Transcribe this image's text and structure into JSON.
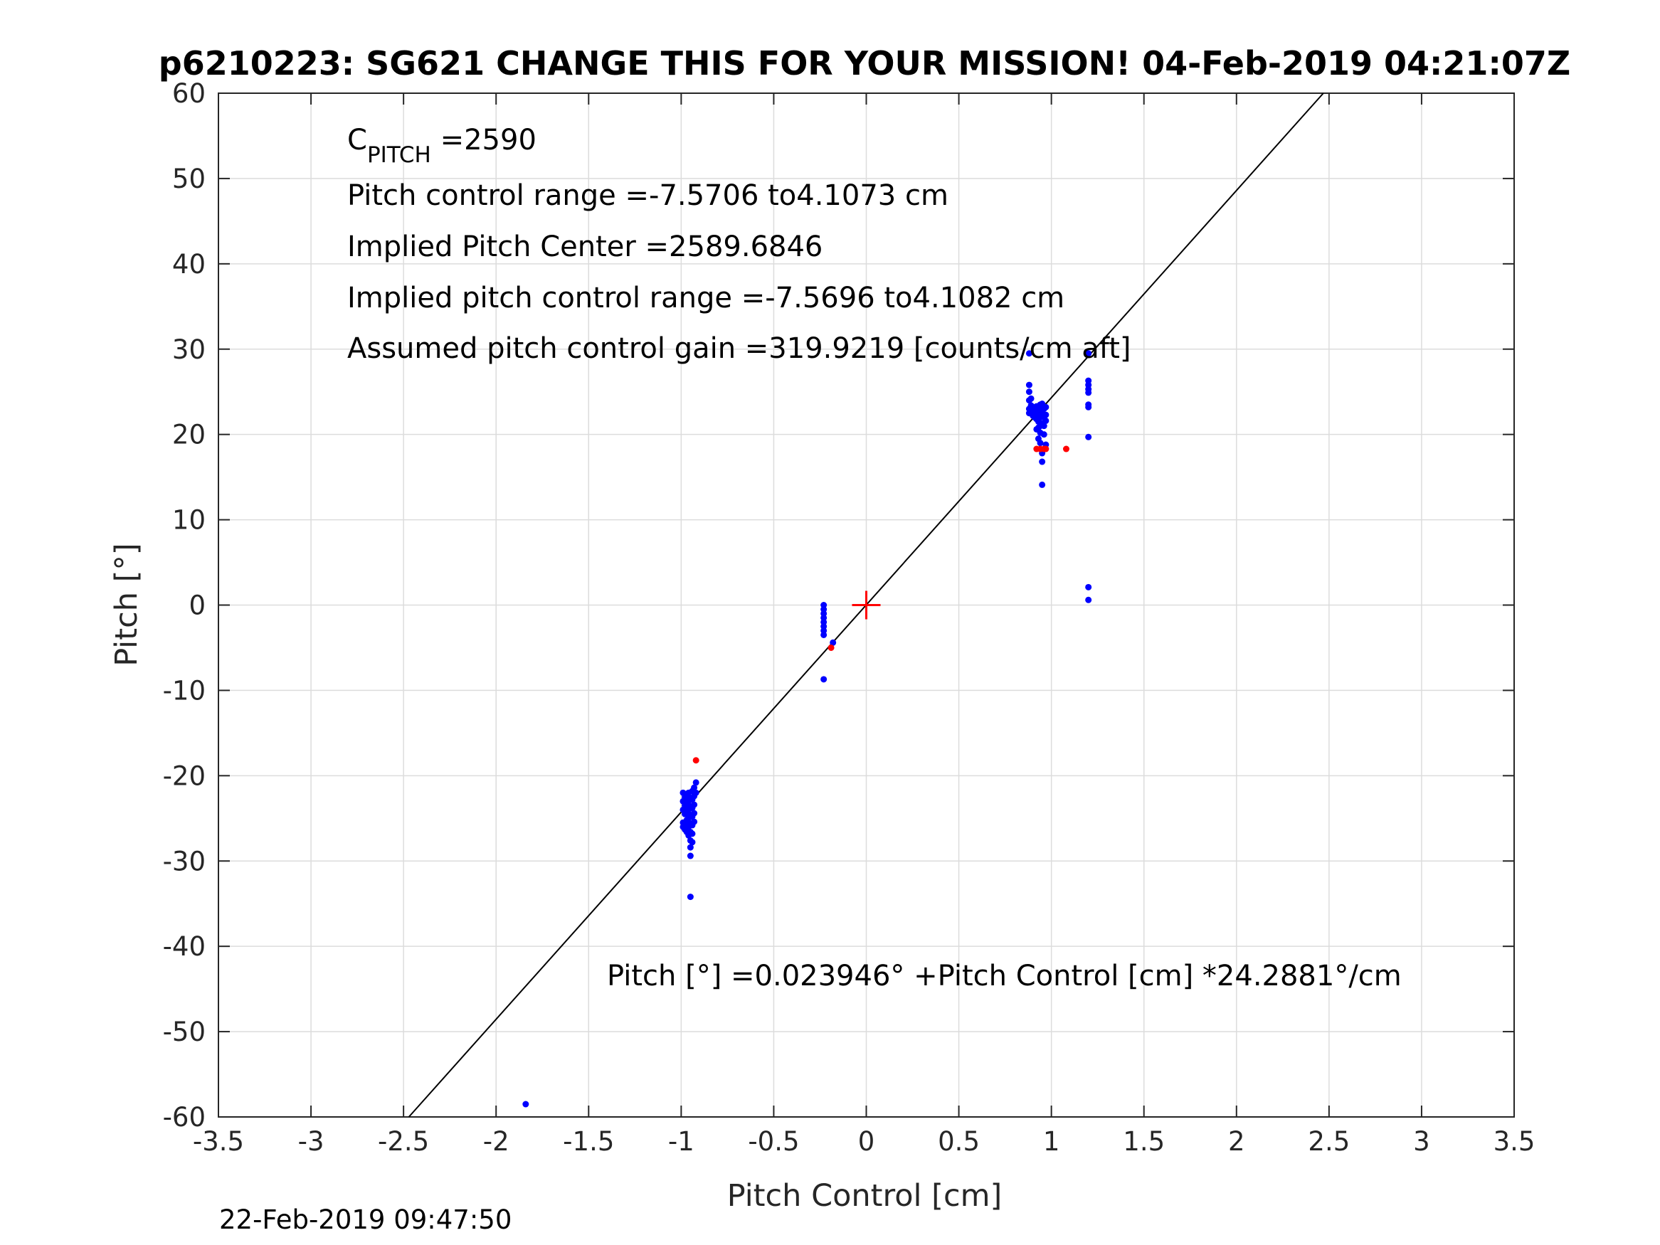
{
  "chart_data": {
    "type": "scatter",
    "title": "p6210223: SG621 CHANGE THIS FOR YOUR MISSION! 04-Feb-2019 04:21:07Z",
    "xlabel": "Pitch Control [cm]",
    "ylabel": "Pitch [°]",
    "xlim": [
      -3.5,
      3.5
    ],
    "ylim": [
      -60,
      60
    ],
    "xticks": [
      -3.5,
      -3,
      -2.5,
      -2,
      -1.5,
      -1,
      -0.5,
      0,
      0.5,
      1,
      1.5,
      2,
      2.5,
      3,
      3.5
    ],
    "yticks": [
      -60,
      -50,
      -40,
      -30,
      -20,
      -10,
      0,
      10,
      20,
      30,
      40,
      50,
      60
    ],
    "grid": true,
    "colors": {
      "primary": "#0000ff",
      "secondary": "#ff0000",
      "fit": "#000000",
      "center": "#ff0000",
      "grid": "#dcdcdc"
    },
    "annotations": {
      "c_pitch_main": "C",
      "c_pitch_sub": "PITCH",
      "c_pitch_value": " =2590",
      "range": "Pitch control range =-7.5706 to4.1073 cm",
      "implied_center": "Implied Pitch Center =2589.6846",
      "implied_range": "Implied pitch control range =-7.5696 to4.1082 cm",
      "gain": "Assumed pitch control gain =319.9219 [counts/cm aft]",
      "fit_equation": "Pitch [°] =0.023946° +Pitch Control [cm] *24.2881°/cm"
    },
    "fit_line": {
      "intercept": 0.023946,
      "slope": 24.2881
    },
    "center_marker": [
      0,
      0
    ],
    "series": [
      {
        "color": "#0000ff",
        "points": [
          [
            -0.99,
            -22.0
          ],
          [
            -0.99,
            -23.0
          ],
          [
            -0.99,
            -24.0
          ],
          [
            -0.99,
            -25.5
          ],
          [
            -0.99,
            -26.0
          ],
          [
            -0.98,
            -22.5
          ],
          [
            -0.98,
            -23.5
          ],
          [
            -0.98,
            -24.5
          ],
          [
            -0.98,
            -25.8
          ],
          [
            -0.98,
            -26.3
          ],
          [
            -0.97,
            -22.2
          ],
          [
            -0.97,
            -23.2
          ],
          [
            -0.97,
            -24.2
          ],
          [
            -0.97,
            -25.2
          ],
          [
            -0.97,
            -26.6
          ],
          [
            -0.96,
            -22.0
          ],
          [
            -0.96,
            -23.0
          ],
          [
            -0.96,
            -24.0
          ],
          [
            -0.96,
            -25.0
          ],
          [
            -0.96,
            -26.0
          ],
          [
            -0.96,
            -27.0
          ],
          [
            -0.95,
            -22.6
          ],
          [
            -0.95,
            -23.6
          ],
          [
            -0.95,
            -24.6
          ],
          [
            -0.95,
            -25.6
          ],
          [
            -0.95,
            -26.6
          ],
          [
            -0.95,
            -27.6
          ],
          [
            -0.95,
            -28.4
          ],
          [
            -0.95,
            -29.4
          ],
          [
            -0.95,
            -34.2
          ],
          [
            -0.94,
            -21.8
          ],
          [
            -0.94,
            -22.8
          ],
          [
            -0.94,
            -23.8
          ],
          [
            -0.94,
            -24.8
          ],
          [
            -0.94,
            -25.8
          ],
          [
            -0.94,
            -26.8
          ],
          [
            -0.94,
            -27.8
          ],
          [
            -0.93,
            -21.4
          ],
          [
            -0.93,
            -22.4
          ],
          [
            -0.93,
            -23.4
          ],
          [
            -0.93,
            -24.4
          ],
          [
            -0.93,
            -25.4
          ],
          [
            -0.92,
            -20.8
          ],
          [
            -0.92,
            -22.0
          ],
          [
            -0.23,
            0.0
          ],
          [
            -0.23,
            -0.5
          ],
          [
            -0.23,
            -1.0
          ],
          [
            -0.23,
            -1.5
          ],
          [
            -0.23,
            -2.0
          ],
          [
            -0.23,
            -2.5
          ],
          [
            -0.23,
            -3.0
          ],
          [
            -0.23,
            -3.5
          ],
          [
            -0.23,
            -8.7
          ],
          [
            -0.18,
            -4.4
          ],
          [
            0.88,
            25.8
          ],
          [
            0.88,
            25.0
          ],
          [
            0.88,
            24.0
          ],
          [
            0.88,
            23.0
          ],
          [
            0.88,
            22.5
          ],
          [
            0.88,
            29.5
          ],
          [
            0.89,
            22.8
          ],
          [
            0.89,
            23.4
          ],
          [
            0.89,
            24.2
          ],
          [
            0.9,
            22.2
          ],
          [
            0.9,
            22.8
          ],
          [
            0.9,
            23.2
          ],
          [
            0.91,
            22.0
          ],
          [
            0.91,
            22.6
          ],
          [
            0.91,
            23.0
          ],
          [
            0.92,
            21.8
          ],
          [
            0.92,
            22.4
          ],
          [
            0.92,
            23.3
          ],
          [
            0.92,
            20.6
          ],
          [
            0.93,
            21.5
          ],
          [
            0.93,
            22.2
          ],
          [
            0.93,
            23.0
          ],
          [
            0.93,
            20.8
          ],
          [
            0.93,
            19.5
          ],
          [
            0.94,
            21.0
          ],
          [
            0.94,
            22.0
          ],
          [
            0.94,
            23.5
          ],
          [
            0.94,
            20.2
          ],
          [
            0.94,
            19.0
          ],
          [
            0.95,
            22.5
          ],
          [
            0.95,
            23.6
          ],
          [
            0.95,
            21.3
          ],
          [
            0.95,
            17.8
          ],
          [
            0.95,
            16.8
          ],
          [
            0.95,
            14.1
          ],
          [
            0.96,
            22.0
          ],
          [
            0.96,
            23.0
          ],
          [
            0.96,
            21.0
          ],
          [
            0.96,
            20.0
          ],
          [
            0.97,
            22.3
          ],
          [
            0.97,
            23.2
          ],
          [
            0.97,
            21.6
          ],
          [
            0.97,
            18.8
          ],
          [
            1.2,
            29.5
          ],
          [
            1.2,
            26.3
          ],
          [
            1.2,
            25.8
          ],
          [
            1.2,
            25.3
          ],
          [
            1.2,
            24.9
          ],
          [
            1.2,
            23.5
          ],
          [
            1.2,
            23.2
          ],
          [
            1.2,
            19.7
          ],
          [
            1.2,
            2.1
          ],
          [
            1.2,
            0.6
          ],
          [
            -1.84,
            -58.5
          ]
        ]
      },
      {
        "color": "#ff0000",
        "points": [
          [
            -0.92,
            -18.2
          ],
          [
            -0.19,
            -5.0
          ],
          [
            0.92,
            18.3
          ],
          [
            0.94,
            18.3
          ],
          [
            0.96,
            18.3
          ],
          [
            0.97,
            18.3
          ],
          [
            1.08,
            18.3
          ]
        ]
      }
    ]
  },
  "footer": {
    "timestamp": "22-Feb-2019 09:47:50"
  }
}
